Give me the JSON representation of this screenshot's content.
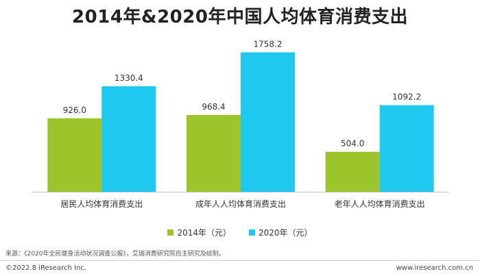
{
  "chart_data": {
    "type": "bar",
    "title": "2014年&2020年中国人均体育消费支出",
    "categories": [
      "居民人均体育消费支出",
      "成年人人均体育消费支出",
      "老年人人均体育消费支出"
    ],
    "series": [
      {
        "name": "2014年（元）",
        "color": "#9cc52c",
        "values": [
          926.0,
          968.4,
          504.0
        ],
        "labels": [
          "926.0",
          "968.4",
          "504.0"
        ]
      },
      {
        "name": "2020年（元）",
        "color": "#1fc8ef",
        "values": [
          1330.4,
          1758.2,
          1092.2
        ],
        "labels": [
          "1330.4",
          "1758.2",
          "1092.2"
        ]
      }
    ],
    "ylim": [
      0,
      1900
    ],
    "grid": false,
    "legend": "bottom-center"
  },
  "footer": {
    "source": "来源：《2020年全民健身活动状况调查公报》，艾瑞消费研究院自主研究及绘制。",
    "copyright": "©2022.8 iResearch Inc.",
    "website": "www.iresearch.com.cn"
  }
}
